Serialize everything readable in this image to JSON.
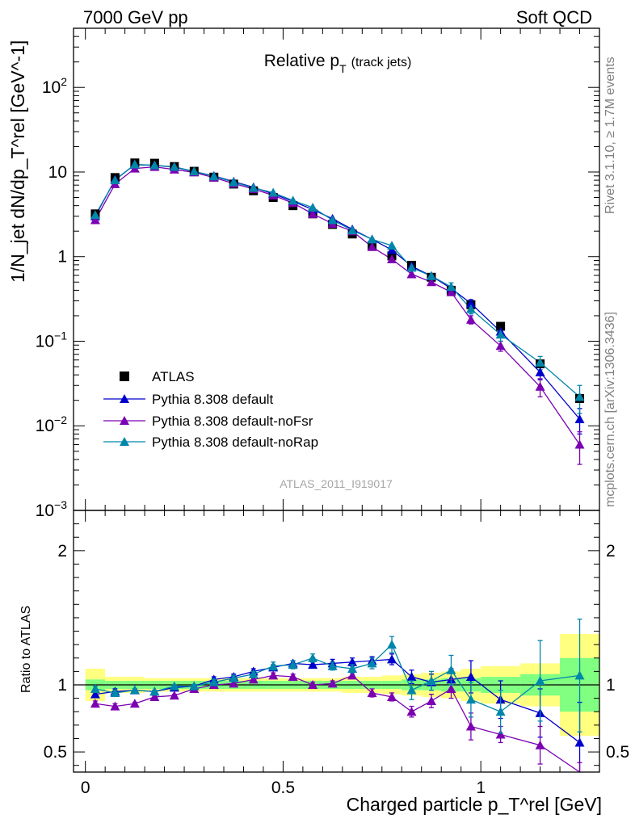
{
  "header": {
    "left": "7000 GeV pp",
    "right": "Soft QCD"
  },
  "side_notes": {
    "rivet": "Rivet 3.1.10, ≥ 1.7M events",
    "mcplots": "mcplots.cern.ch [arXiv:1306.3436]"
  },
  "colors": {
    "atlas": "#000000",
    "default": "#0000cc",
    "noFsr": "#7b00b2",
    "noRap": "#0086aa",
    "band_stat": "#80ff80",
    "band_total": "#ffff80"
  },
  "chart_data": [
    {
      "type": "scatter",
      "panel": "main",
      "title_main": "Relative p",
      "title_sub": "T",
      "title_note": "(track jets)",
      "ylabel": "1/N_jet dN/dp_T^rel [GeV^-1]",
      "analysis_label": "ATLAS_2011_I919017",
      "yscale": "log",
      "xlim": [
        -0.03,
        1.3
      ],
      "ylim": [
        0.001,
        500
      ],
      "y_ticks": [
        {
          "v": 0.001,
          "m": "10",
          "e": "−3"
        },
        {
          "v": 0.01,
          "m": "10",
          "e": "−2"
        },
        {
          "v": 0.1,
          "m": "10",
          "e": "−1"
        },
        {
          "v": 1,
          "m": "1",
          "e": ""
        },
        {
          "v": 10,
          "m": "10",
          "e": ""
        },
        {
          "v": 100,
          "m": "10",
          "e": "2"
        }
      ],
      "x": [
        0.025,
        0.075,
        0.125,
        0.175,
        0.225,
        0.275,
        0.325,
        0.375,
        0.425,
        0.475,
        0.525,
        0.575,
        0.625,
        0.675,
        0.725,
        0.775,
        0.825,
        0.875,
        0.925,
        0.975,
        1.05,
        1.15,
        1.25
      ],
      "legend": [
        "ATLAS",
        "Pythia 8.308 default",
        "Pythia 8.308 default-noFsr",
        "Pythia 8.308 default-noRap"
      ],
      "series": [
        {
          "name": "ATLAS",
          "values": [
            3.2,
            8.6,
            12.8,
            12.7,
            11.6,
            10.2,
            8.7,
            7.2,
            6.0,
            5.0,
            4.0,
            3.2,
            2.4,
            1.85,
            1.35,
            1.02,
            0.79,
            0.57,
            0.4,
            0.27,
            0.15,
            0.054,
            0.021
          ]
        },
        {
          "name": "Pythia 8.308 default",
          "values": [
            3.0,
            8.1,
            12.2,
            12.0,
            11.4,
            10.1,
            9.0,
            7.7,
            6.6,
            5.5,
            4.5,
            3.6,
            2.8,
            2.1,
            1.6,
            1.2,
            0.77,
            0.59,
            0.42,
            0.28,
            0.13,
            0.043,
            0.012
          ],
          "err": [
            0,
            0,
            0,
            0,
            0,
            0,
            0,
            0,
            0,
            0,
            0,
            0,
            0,
            0,
            0,
            0,
            0,
            0,
            0,
            0.03,
            0.02,
            0.008,
            0.004
          ]
        },
        {
          "name": "Pythia 8.308 default-noFsr",
          "values": [
            2.7,
            7.2,
            11.0,
            11.5,
            10.7,
            9.9,
            8.6,
            7.3,
            6.3,
            5.3,
            4.3,
            3.2,
            2.45,
            2.0,
            1.3,
            0.93,
            0.62,
            0.5,
            0.38,
            0.18,
            0.088,
            0.029,
            0.006
          ],
          "err": [
            0,
            0,
            0,
            0,
            0,
            0,
            0,
            0,
            0,
            0,
            0,
            0,
            0,
            0,
            0,
            0,
            0,
            0,
            0,
            0.02,
            0.012,
            0.007,
            0.0025
          ]
        },
        {
          "name": "Pythia 8.308 default-noRap",
          "values": [
            3.1,
            8.0,
            12.3,
            12.0,
            11.5,
            10.2,
            8.9,
            7.6,
            6.5,
            5.7,
            4.6,
            3.8,
            2.7,
            2.05,
            1.6,
            1.35,
            0.74,
            0.59,
            0.44,
            0.24,
            0.12,
            0.056,
            0.022
          ],
          "err": [
            0,
            0,
            0,
            0,
            0,
            0,
            0,
            0,
            0,
            0,
            0,
            0,
            0,
            0,
            0,
            0,
            0,
            0,
            0.05,
            0.03,
            0.02,
            0.01,
            0.008
          ]
        }
      ]
    },
    {
      "type": "scatter",
      "panel": "ratio",
      "ylabel": "Ratio to ATLAS",
      "xlabel": "Charged particle p_T^rel [GeV]",
      "ylim": [
        0.35,
        2.3
      ],
      "xlim": [
        -0.03,
        1.3
      ],
      "y_ticks": [
        0.5,
        1,
        2
      ],
      "x_ticks": [
        0,
        0.5,
        1
      ],
      "bins": [
        [
          0.0,
          0.05
        ],
        [
          0.05,
          0.1
        ],
        [
          0.1,
          0.15
        ],
        [
          0.15,
          0.2
        ],
        [
          0.2,
          0.25
        ],
        [
          0.25,
          0.3
        ],
        [
          0.3,
          0.35
        ],
        [
          0.35,
          0.4
        ],
        [
          0.4,
          0.45
        ],
        [
          0.45,
          0.5
        ],
        [
          0.5,
          0.55
        ],
        [
          0.55,
          0.6
        ],
        [
          0.6,
          0.65
        ],
        [
          0.65,
          0.7
        ],
        [
          0.7,
          0.75
        ],
        [
          0.75,
          0.8
        ],
        [
          0.8,
          0.85
        ],
        [
          0.85,
          0.9
        ],
        [
          0.9,
          0.95
        ],
        [
          0.95,
          1.0
        ],
        [
          1.0,
          1.1
        ],
        [
          1.1,
          1.2
        ],
        [
          1.2,
          1.3
        ]
      ],
      "band_total": [
        0.12,
        0.06,
        0.06,
        0.05,
        0.05,
        0.05,
        0.05,
        0.05,
        0.05,
        0.05,
        0.05,
        0.05,
        0.05,
        0.06,
        0.06,
        0.07,
        0.08,
        0.09,
        0.1,
        0.12,
        0.14,
        0.16,
        0.38
      ],
      "band_stat": [
        0.04,
        0.03,
        0.03,
        0.03,
        0.03,
        0.03,
        0.03,
        0.03,
        0.03,
        0.03,
        0.03,
        0.03,
        0.03,
        0.03,
        0.03,
        0.03,
        0.04,
        0.04,
        0.05,
        0.05,
        0.06,
        0.08,
        0.2
      ],
      "series": [
        {
          "name": "Pythia 8.308 default",
          "values": [
            0.93,
            0.95,
            0.96,
            0.95,
            0.98,
            0.99,
            1.04,
            1.06,
            1.1,
            1.13,
            1.16,
            1.15,
            1.16,
            1.17,
            1.18,
            1.19,
            1.06,
            1.02,
            1.04,
            1.06,
            0.89,
            0.79,
            0.57
          ],
          "err": [
            0.02,
            0.02,
            0.01,
            0.01,
            0.01,
            0.01,
            0.02,
            0.02,
            0.02,
            0.02,
            0.02,
            0.02,
            0.03,
            0.03,
            0.03,
            0.04,
            0.05,
            0.06,
            0.08,
            0.12,
            0.14,
            0.18,
            0.3
          ]
        },
        {
          "name": "Pythia 8.308 default-noFsr",
          "values": [
            0.86,
            0.84,
            0.86,
            0.91,
            0.92,
            0.97,
            1.0,
            1.01,
            1.04,
            1.07,
            1.06,
            1.0,
            1.01,
            1.07,
            0.94,
            0.91,
            0.8,
            0.88,
            0.97,
            0.69,
            0.63,
            0.55,
            0.3
          ],
          "err": [
            0.02,
            0.02,
            0.01,
            0.01,
            0.01,
            0.01,
            0.02,
            0.02,
            0.02,
            0.02,
            0.02,
            0.02,
            0.02,
            0.02,
            0.03,
            0.03,
            0.04,
            0.05,
            0.07,
            0.1,
            0.06,
            0.14,
            0.12
          ]
        },
        {
          "name": "Pythia 8.308 default-noRap",
          "values": [
            0.97,
            0.94,
            0.96,
            0.95,
            0.99,
            0.99,
            1.02,
            1.05,
            1.08,
            1.14,
            1.15,
            1.2,
            1.14,
            1.12,
            1.16,
            1.3,
            0.96,
            1.03,
            1.11,
            0.89,
            0.8,
            1.03,
            1.07
          ],
          "err": [
            0.02,
            0.02,
            0.01,
            0.01,
            0.01,
            0.01,
            0.02,
            0.02,
            0.02,
            0.03,
            0.03,
            0.03,
            0.03,
            0.03,
            0.04,
            0.06,
            0.07,
            0.07,
            0.11,
            0.13,
            0.16,
            0.3,
            0.42
          ]
        }
      ]
    }
  ]
}
